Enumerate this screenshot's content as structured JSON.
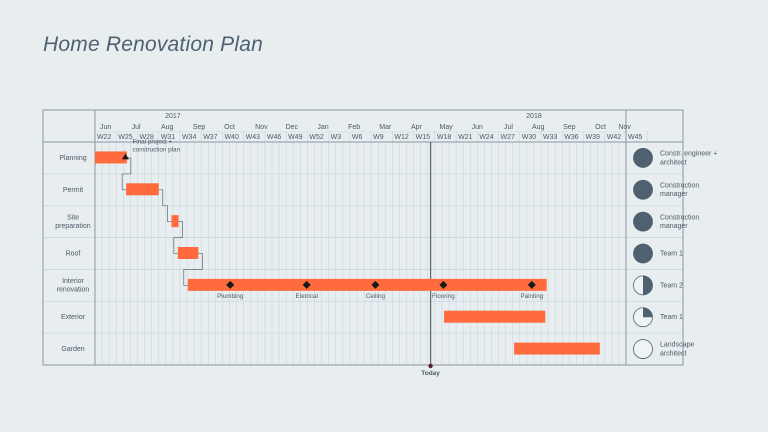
{
  "page": {
    "title": "Home Renovation Plan"
  },
  "chart_data": {
    "type": "gantt",
    "title": "Home Renovation Plan",
    "years": [
      {
        "label": "2017",
        "week": 33
      },
      {
        "label": "2018",
        "week": 84
      }
    ],
    "months": [
      {
        "label": "Jun",
        "week": 23.5
      },
      {
        "label": "Jul",
        "week": 27.8
      },
      {
        "label": "Aug",
        "week": 32.2
      },
      {
        "label": "Sep",
        "week": 36.7
      },
      {
        "label": "Oct",
        "week": 41.0
      },
      {
        "label": "Nov",
        "week": 45.5
      },
      {
        "label": "Dec",
        "week": 49.8
      },
      {
        "label": "Jan",
        "week": 54.2
      },
      {
        "label": "Feb",
        "week": 58.6
      },
      {
        "label": "Mar",
        "week": 63.0
      },
      {
        "label": "Apr",
        "week": 67.4
      },
      {
        "label": "May",
        "week": 71.6
      },
      {
        "label": "Jun",
        "week": 76.0
      },
      {
        "label": "Jul",
        "week": 80.4
      },
      {
        "label": "Aug",
        "week": 84.6
      },
      {
        "label": "Sep",
        "week": 89.0
      },
      {
        "label": "Oct",
        "week": 93.4
      },
      {
        "label": "Nov",
        "week": 96.8
      }
    ],
    "week_labels": [
      "W22",
      "W25",
      "W28",
      "W31",
      "W34",
      "W37",
      "W40",
      "W43",
      "W46",
      "W49",
      "W52",
      "W3",
      "W6",
      "W9",
      "W12",
      "W15",
      "W18",
      "W21",
      "W24",
      "W27",
      "W30",
      "W33",
      "W36",
      "W39",
      "W42",
      "W45"
    ],
    "week_range": [
      22,
      97
    ],
    "tasks": [
      {
        "name": "Planning",
        "start": 22,
        "end": 26.5
      },
      {
        "name": "Permit",
        "start": 26.4,
        "end": 31
      },
      {
        "name": "Site\npreparation",
        "start": 32.8,
        "end": 33.8
      },
      {
        "name": "Roof",
        "start": 33.7,
        "end": 36.6
      },
      {
        "name": "Interior\nrenovation",
        "start": 35.1,
        "end": 85.8
      },
      {
        "name": "Exterior",
        "start": 71.3,
        "end": 85.6
      },
      {
        "name": "Garden",
        "start": 81.2,
        "end": 93.3
      }
    ],
    "milestones": [
      {
        "task": 0,
        "week": 26.3,
        "shape": "triangle",
        "label": "Final project +\nconstruction plan"
      },
      {
        "task": 4,
        "week": 41.1,
        "shape": "diamond",
        "label": "Plumbing"
      },
      {
        "task": 4,
        "week": 51.9,
        "shape": "diamond",
        "label": "Eletrical"
      },
      {
        "task": 4,
        "week": 61.6,
        "shape": "diamond",
        "label": "Ceiling"
      },
      {
        "task": 4,
        "week": 71.2,
        "shape": "diamond",
        "label": "Flooring"
      },
      {
        "task": 4,
        "week": 83.7,
        "shape": "diamond",
        "label": "Painting"
      }
    ],
    "dependencies": [
      [
        0,
        1
      ],
      [
        1,
        2
      ],
      [
        2,
        3
      ],
      [
        3,
        4
      ]
    ],
    "today": {
      "week": 69.4,
      "label": "Today"
    },
    "resources": [
      {
        "label": "Constr. engineer +\narchitect",
        "progress": 1.0
      },
      {
        "label": "Construction\nmanager",
        "progress": 1.0
      },
      {
        "label": "Construction\nmanager",
        "progress": 1.0
      },
      {
        "label": "Team 1",
        "progress": 1.0
      },
      {
        "label": "Team 2",
        "progress": 0.5
      },
      {
        "label": "Team 1",
        "progress": 0.25
      },
      {
        "label": "Landscape\narchitect",
        "progress": 0.0
      }
    ],
    "colors": {
      "bar": "#ff6b3d",
      "milestone": "#1a1a1a",
      "grid": "#c9d6de",
      "frame": "#8a979f",
      "text": "#4a5a66",
      "resource_fill": "#4f6170",
      "today_line": "#5a6670"
    },
    "grid": true
  }
}
